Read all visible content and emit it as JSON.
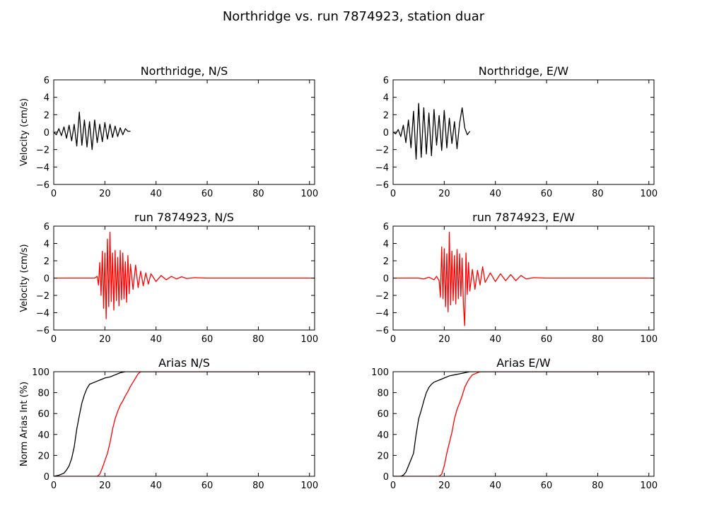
{
  "figure": {
    "title": "Northridge vs. run 7874923, station duar"
  },
  "chart_data": [
    {
      "type": "line",
      "title": "Northridge, N/S",
      "xlabel": "",
      "ylabel": "Velocity (cm/s)",
      "xlim": [
        0,
        102
      ],
      "ylim": [
        -6,
        6
      ],
      "xticks": [
        0,
        20,
        40,
        60,
        80,
        100
      ],
      "yticks": [
        -6,
        -4,
        -2,
        0,
        2,
        4,
        6
      ],
      "series": [
        {
          "color": "#000000",
          "x": [
            0,
            1,
            2,
            3,
            4,
            5,
            6,
            7,
            8,
            9,
            10,
            11,
            12,
            13,
            14,
            15,
            16,
            17,
            18,
            19,
            20,
            21,
            22,
            23,
            24,
            25,
            26,
            27,
            28,
            29,
            30
          ],
          "y": [
            0,
            -0.3,
            0.4,
            -0.4,
            0.6,
            -0.7,
            0.8,
            -1.0,
            0.9,
            -1.6,
            2.3,
            -1.5,
            1.4,
            -1.7,
            1.2,
            -2.0,
            1.4,
            -1.2,
            0.9,
            -1.1,
            1.1,
            -0.8,
            0.9,
            -0.6,
            0.7,
            -0.5,
            0.5,
            -0.3,
            0.4,
            0.1,
            0.1
          ]
        }
      ]
    },
    {
      "type": "line",
      "title": "Northridge, E/W",
      "xlabel": "",
      "ylabel": "",
      "xlim": [
        0,
        102
      ],
      "ylim": [
        -6,
        6
      ],
      "xticks": [
        0,
        20,
        40,
        60,
        80,
        100
      ],
      "yticks": [
        -6,
        -4,
        -2,
        0,
        2,
        4,
        6
      ],
      "series": [
        {
          "color": "#000000",
          "x": [
            0,
            1,
            2,
            3,
            4,
            5,
            6,
            7,
            8,
            9,
            10,
            11,
            12,
            13,
            14,
            15,
            16,
            17,
            18,
            19,
            20,
            21,
            22,
            23,
            24,
            25,
            26,
            27,
            28,
            29,
            30
          ],
          "y": [
            0,
            -0.2,
            0.3,
            -0.5,
            0.8,
            -1.2,
            1.4,
            -1.8,
            2.4,
            -3.1,
            3.3,
            -2.9,
            2.8,
            -2.5,
            2.2,
            -2.7,
            2.6,
            -1.5,
            1.9,
            -2.1,
            2.5,
            -1.8,
            1.6,
            -1.3,
            1.2,
            -1.9,
            1.0,
            2.8,
            0.5,
            -0.3,
            0.1
          ]
        }
      ]
    },
    {
      "type": "line",
      "title": "run 7874923, N/S",
      "xlabel": "",
      "ylabel": "Velocity (cm/s)",
      "xlim": [
        0,
        102
      ],
      "ylim": [
        -6,
        6
      ],
      "xticks": [
        0,
        20,
        40,
        60,
        80,
        100
      ],
      "yticks": [
        -6,
        -4,
        -2,
        0,
        2,
        4,
        6
      ],
      "series": [
        {
          "color": "#ff0000",
          "x": [
            0,
            16,
            17,
            17.5,
            18,
            18.5,
            19,
            19.5,
            20,
            20.5,
            21,
            21.5,
            22,
            22.5,
            23,
            23.5,
            24,
            24.5,
            25,
            25.5,
            26,
            26.5,
            27,
            27.5,
            28,
            28.5,
            29,
            29.5,
            30,
            31,
            32,
            33,
            34,
            35,
            36,
            37,
            38,
            40,
            42,
            44,
            46,
            48,
            50,
            52,
            55,
            60,
            102
          ],
          "y": [
            0,
            0,
            0.2,
            -0.8,
            1.8,
            -2.0,
            3.1,
            -3.5,
            2.9,
            -4.7,
            4.5,
            -3.3,
            5.3,
            -2.7,
            2.9,
            -3.7,
            3.2,
            -2.6,
            2.4,
            -3.2,
            3.2,
            -2.5,
            2.9,
            -2.4,
            1.9,
            -2.8,
            2.6,
            -1.8,
            1.6,
            -1.3,
            1.5,
            -1.1,
            0.8,
            -0.9,
            0.6,
            -0.7,
            0.5,
            -0.4,
            0.3,
            -0.2,
            0.2,
            -0.1,
            0.15,
            -0.05,
            0.05,
            0,
            0
          ]
        }
      ]
    },
    {
      "type": "line",
      "title": "run 7874923, E/W",
      "xlabel": "",
      "ylabel": "",
      "xlim": [
        0,
        102
      ],
      "ylim": [
        -6,
        6
      ],
      "xticks": [
        0,
        20,
        40,
        60,
        80,
        100
      ],
      "yticks": [
        -6,
        -4,
        -2,
        0,
        2,
        4,
        6
      ],
      "series": [
        {
          "color": "#ff0000",
          "x": [
            0,
            10,
            12,
            14,
            16,
            17,
            18,
            18.5,
            19,
            19.5,
            20,
            20.5,
            21,
            21.5,
            22,
            22.5,
            23,
            23.5,
            24,
            24.5,
            25,
            25.5,
            26,
            26.5,
            27,
            27.5,
            28,
            28.5,
            29,
            29.5,
            30,
            31,
            32,
            33,
            34,
            35,
            36,
            38,
            40,
            42,
            44,
            46,
            48,
            50,
            52,
            55,
            60,
            102
          ],
          "y": [
            0,
            0,
            -0.1,
            0.1,
            -0.2,
            0.2,
            -0.3,
            -2.2,
            3.6,
            -2.4,
            3.4,
            -3.3,
            2.8,
            -3.9,
            5.3,
            -3.1,
            3.1,
            -2.6,
            2.6,
            -3.0,
            3.3,
            -2.4,
            2.8,
            -2.1,
            2.3,
            -3.1,
            -5.5,
            2.9,
            -1.9,
            1.8,
            -1.5,
            1.0,
            -1.3,
            0.9,
            -0.8,
            1.3,
            -0.5,
            0.6,
            -0.4,
            0.5,
            -0.3,
            0.4,
            -0.3,
            0.3,
            -0.1,
            0.05,
            0,
            0
          ]
        }
      ]
    },
    {
      "type": "line",
      "title": "Arias N/S",
      "xlabel": "",
      "ylabel": "Norm Arias Int (%)",
      "xlim": [
        0,
        102
      ],
      "ylim": [
        0,
        100
      ],
      "xticks": [
        0,
        20,
        40,
        60,
        80,
        100
      ],
      "yticks": [
        0,
        20,
        40,
        60,
        80,
        100
      ],
      "series": [
        {
          "color": "#000000",
          "x": [
            0,
            2,
            4,
            5,
            6,
            7,
            8,
            9,
            10,
            11,
            12,
            13,
            14,
            15,
            16,
            17,
            18,
            19,
            20,
            22,
            24,
            26,
            28,
            30,
            102
          ],
          "y": [
            0,
            1,
            3,
            6,
            10,
            17,
            28,
            45,
            58,
            70,
            78,
            84,
            88,
            89,
            90,
            91,
            92,
            93,
            94,
            95,
            97,
            99,
            100,
            100,
            100
          ]
        },
        {
          "color": "#ff0000",
          "x": [
            0,
            17,
            18,
            19,
            20,
            21,
            22,
            23,
            24,
            25,
            26,
            27,
            28,
            29,
            30,
            31,
            32,
            33,
            34,
            35,
            102
          ],
          "y": [
            0,
            0,
            2,
            8,
            15,
            22,
            32,
            45,
            55,
            62,
            68,
            72,
            77,
            81,
            86,
            90,
            94,
            98,
            100,
            100,
            100
          ]
        }
      ]
    },
    {
      "type": "line",
      "title": "Arias E/W",
      "xlabel": "",
      "ylabel": "",
      "xlim": [
        0,
        102
      ],
      "ylim": [
        0,
        100
      ],
      "xticks": [
        0,
        20,
        40,
        60,
        80,
        100
      ],
      "yticks": [
        0,
        20,
        40,
        60,
        80,
        100
      ],
      "series": [
        {
          "color": "#000000",
          "x": [
            0,
            3,
            4,
            5,
            6,
            7,
            8,
            9,
            10,
            11,
            12,
            13,
            14,
            15,
            16,
            18,
            20,
            22,
            24,
            26,
            28,
            30,
            102
          ],
          "y": [
            0,
            0,
            1,
            4,
            10,
            16,
            22,
            40,
            55,
            63,
            72,
            80,
            85,
            88,
            90,
            92,
            94,
            96,
            97,
            98,
            99,
            100,
            100
          ]
        },
        {
          "color": "#ff0000",
          "x": [
            0,
            18,
            19,
            20,
            21,
            22,
            23,
            24,
            25,
            26,
            27,
            28,
            29,
            30,
            31,
            32,
            33,
            34,
            35,
            102
          ],
          "y": [
            0,
            0,
            2,
            10,
            22,
            32,
            42,
            55,
            64,
            70,
            77,
            85,
            90,
            94,
            97,
            98,
            99,
            100,
            100,
            100
          ]
        }
      ]
    }
  ]
}
